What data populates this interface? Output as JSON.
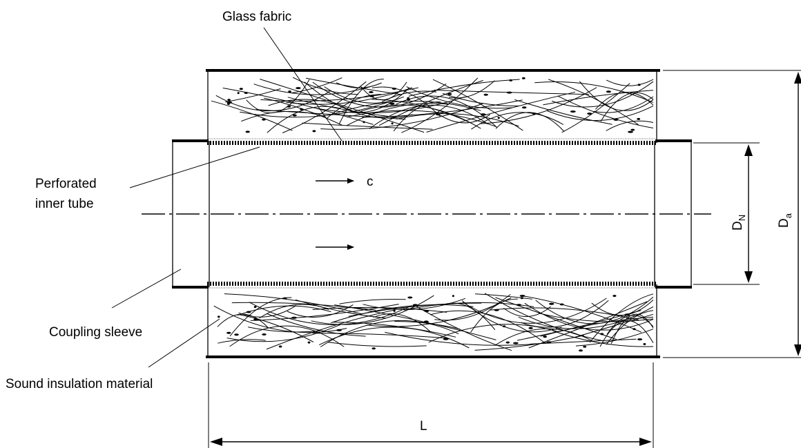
{
  "labels": {
    "glass_fabric": "Glass fabric",
    "perforated_line1": "Perforated",
    "perforated_line2": "inner tube",
    "coupling_sleeve": "Coupling sleeve",
    "sound_insulation": "Sound insulation material",
    "flow_velocity": "c",
    "length": "L",
    "nominal_diameter_main": "D",
    "nominal_diameter_sub": "N",
    "outer_diameter_main": "D",
    "outer_diameter_sub": "a"
  }
}
